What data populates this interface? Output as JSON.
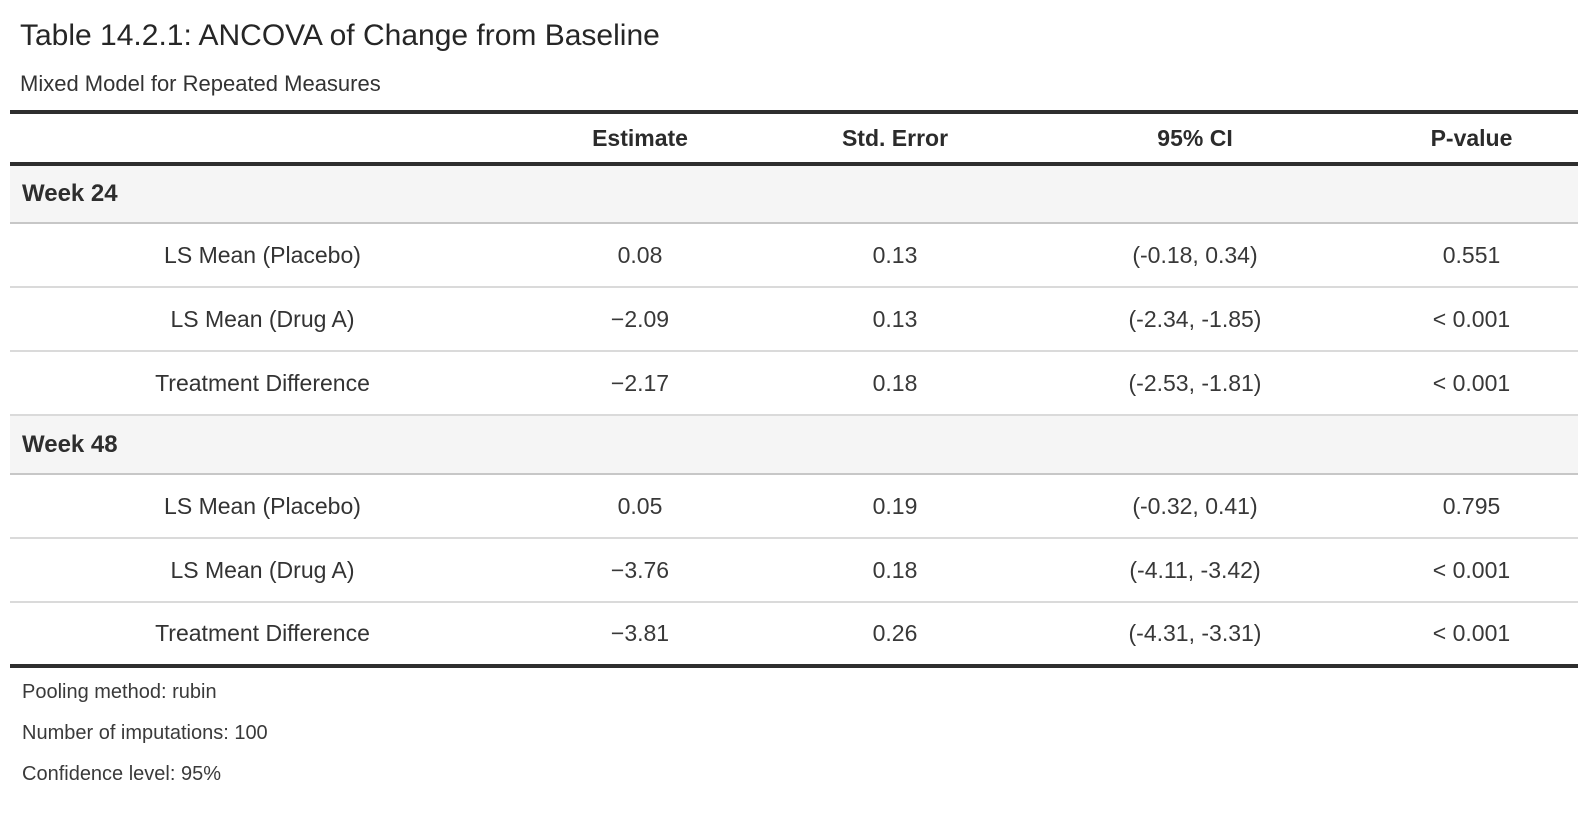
{
  "title": "Table 14.2.1: ANCOVA of Change from Baseline",
  "subtitle": "Mixed Model for Repeated Measures",
  "table": {
    "columns": [
      "Estimate",
      "Std. Error",
      "95% CI",
      "P-value"
    ],
    "groups": [
      {
        "label": "Week 24",
        "rows": [
          {
            "label": "LS Mean (Placebo)",
            "estimate": "0.08",
            "std_error": "0.13",
            "ci": "(-0.18, 0.34)",
            "p_value": "0.551"
          },
          {
            "label": "LS Mean (Drug A)",
            "estimate": "−2.09",
            "std_error": "0.13",
            "ci": "(-2.34, -1.85)",
            "p_value": "< 0.001"
          },
          {
            "label": "Treatment Difference",
            "estimate": "−2.17",
            "std_error": "0.18",
            "ci": "(-2.53, -1.81)",
            "p_value": "< 0.001"
          }
        ]
      },
      {
        "label": "Week 48",
        "rows": [
          {
            "label": "LS Mean (Placebo)",
            "estimate": "0.05",
            "std_error": "0.19",
            "ci": "(-0.32, 0.41)",
            "p_value": "0.795"
          },
          {
            "label": "LS Mean (Drug A)",
            "estimate": "−3.76",
            "std_error": "0.18",
            "ci": "(-4.11, -3.42)",
            "p_value": "< 0.001"
          },
          {
            "label": "Treatment Difference",
            "estimate": "−3.81",
            "std_error": "0.26",
            "ci": "(-4.31, -3.31)",
            "p_value": "< 0.001"
          }
        ]
      }
    ],
    "footnotes": [
      "Pooling method: rubin",
      "Number of imputations: 100",
      "Confidence level: 95%"
    ]
  },
  "colors": {
    "heavy_rule": "#2e2e2e",
    "light_rule": "#dadada",
    "group_rule": "#c7c7c7",
    "group_band_bg": "#f5f5f5",
    "text": "#333333",
    "background": "#ffffff"
  }
}
